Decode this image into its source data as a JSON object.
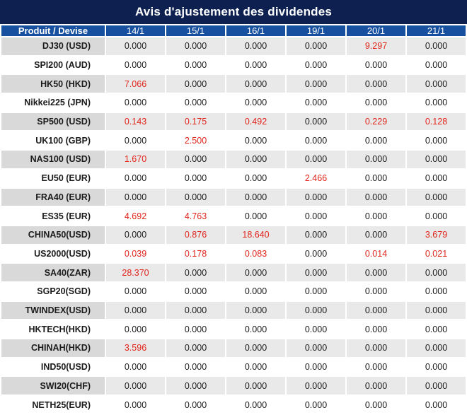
{
  "title": "Avis d'ajustement des dividendes",
  "table": {
    "product_header": "Produit / Devise",
    "date_columns": [
      "14/1",
      "15/1",
      "16/1",
      "19/1",
      "20/1",
      "21/1"
    ],
    "zero_value": "0.000",
    "rows": [
      {
        "product": "DJ30 (USD)",
        "values": [
          "0.000",
          "0.000",
          "0.000",
          "0.000",
          "9.297",
          "0.000"
        ]
      },
      {
        "product": "SPI200 (AUD)",
        "values": [
          "0.000",
          "0.000",
          "0.000",
          "0.000",
          "0.000",
          "0.000"
        ]
      },
      {
        "product": "HK50 (HKD)",
        "values": [
          "7.066",
          "0.000",
          "0.000",
          "0.000",
          "0.000",
          "0.000"
        ]
      },
      {
        "product": "Nikkei225 (JPN)",
        "values": [
          "0.000",
          "0.000",
          "0.000",
          "0.000",
          "0.000",
          "0.000"
        ]
      },
      {
        "product": "SP500 (USD)",
        "values": [
          "0.143",
          "0.175",
          "0.492",
          "0.000",
          "0.229",
          "0.128"
        ]
      },
      {
        "product": "UK100 (GBP)",
        "values": [
          "0.000",
          "2.500",
          "0.000",
          "0.000",
          "0.000",
          "0.000"
        ]
      },
      {
        "product": "NAS100 (USD)",
        "values": [
          "1.670",
          "0.000",
          "0.000",
          "0.000",
          "0.000",
          "0.000"
        ]
      },
      {
        "product": "EU50 (EUR)",
        "values": [
          "0.000",
          "0.000",
          "0.000",
          "2.466",
          "0.000",
          "0.000"
        ]
      },
      {
        "product": "FRA40 (EUR)",
        "values": [
          "0.000",
          "0.000",
          "0.000",
          "0.000",
          "0.000",
          "0.000"
        ]
      },
      {
        "product": "ES35 (EUR)",
        "values": [
          "4.692",
          "4.763",
          "0.000",
          "0.000",
          "0.000",
          "0.000"
        ]
      },
      {
        "product": "CHINA50(USD)",
        "values": [
          "0.000",
          "0.876",
          "18.640",
          "0.000",
          "0.000",
          "3.679"
        ]
      },
      {
        "product": "US2000(USD)",
        "values": [
          "0.039",
          "0.178",
          "0.083",
          "0.000",
          "0.014",
          "0.021"
        ]
      },
      {
        "product": "SA40(ZAR)",
        "values": [
          "28.370",
          "0.000",
          "0.000",
          "0.000",
          "0.000",
          "0.000"
        ]
      },
      {
        "product": "SGP20(SGD)",
        "values": [
          "0.000",
          "0.000",
          "0.000",
          "0.000",
          "0.000",
          "0.000"
        ]
      },
      {
        "product": "TWINDEX(USD)",
        "values": [
          "0.000",
          "0.000",
          "0.000",
          "0.000",
          "0.000",
          "0.000"
        ]
      },
      {
        "product": "HKTECH(HKD)",
        "values": [
          "0.000",
          "0.000",
          "0.000",
          "0.000",
          "0.000",
          "0.000"
        ]
      },
      {
        "product": "CHINAH(HKD)",
        "values": [
          "3.596",
          "0.000",
          "0.000",
          "0.000",
          "0.000",
          "0.000"
        ]
      },
      {
        "product": "IND50(USD)",
        "values": [
          "0.000",
          "0.000",
          "0.000",
          "0.000",
          "0.000",
          "0.000"
        ]
      },
      {
        "product": "SWI20(CHF)",
        "values": [
          "0.000",
          "0.000",
          "0.000",
          "0.000",
          "0.000",
          "0.000"
        ]
      },
      {
        "product": "NETH25(EUR)",
        "values": [
          "0.000",
          "0.000",
          "0.000",
          "0.000",
          "0.000",
          "0.000"
        ]
      }
    ]
  },
  "colors": {
    "title_bar_bg": "#0d2050",
    "header_row_bg": "#17509e",
    "alt_row_product_bg": "#d9d9d9",
    "alt_row_value_bg": "#e9e9e9",
    "row_bg": "#ffffff",
    "highlight_red": "#e1251b",
    "text_dark": "#1b1b1b",
    "text_light": "#ffffff"
  }
}
